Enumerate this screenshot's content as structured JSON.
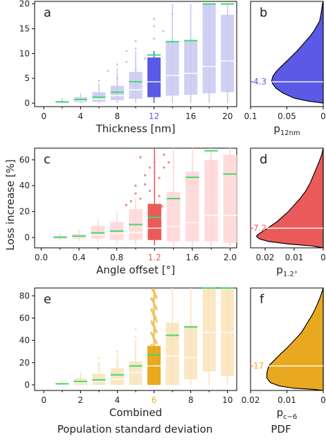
{
  "figure": {
    "y_axis_label": "Loss increase [%]",
    "bottom_left_label": "Population standard deviation",
    "bottom_right_label": "PDF"
  },
  "chart_data": [
    {
      "type": "box",
      "panel_label": "a",
      "xlabel": "Thickness [nm]",
      "xticks": [
        0,
        4,
        8,
        12,
        16,
        20
      ],
      "highlight_tick": 12,
      "xlim": [
        -1,
        21
      ],
      "ylim": [
        -0.7,
        20.5
      ],
      "yticks": [
        0,
        5,
        10,
        15,
        20
      ],
      "base_color": "#c8c8f0",
      "highlight_color": "#5a5ae6",
      "highlight_label_color": "#5a5ae6",
      "boxes": [
        {
          "x": 2,
          "q1": 0.1,
          "median": 0.2,
          "q3": 0.4,
          "mean": 0.25,
          "whisker_low": 0,
          "whisker_high": 1.0
        },
        {
          "x": 4,
          "q1": 0.2,
          "median": 0.5,
          "q3": 1.2,
          "mean": 0.7,
          "whisker_low": 0,
          "whisker_high": 2.0
        },
        {
          "x": 6,
          "q1": 0.3,
          "median": 0.8,
          "q3": 2.2,
          "mean": 1.2,
          "whisker_low": 0,
          "whisker_high": 4.0
        },
        {
          "x": 8,
          "q1": 0.6,
          "median": 1.5,
          "q3": 3.5,
          "mean": 2.2,
          "whisker_low": 0,
          "whisker_high": 7.0
        },
        {
          "x": 10,
          "q1": 0.9,
          "median": 2.7,
          "q3": 6.3,
          "mean": 4.3,
          "whisker_low": 0,
          "whisker_high": 10.5
        },
        {
          "x": 12,
          "q1": 1.2,
          "median": 4.3,
          "q3": 9.2,
          "mean": 9.7,
          "whisker_low": 0,
          "whisker_high": 10.5
        },
        {
          "x": 14,
          "q1": 1.5,
          "median": 5.6,
          "q3": 12.5,
          "mean": 12.4,
          "whisker_low": 0,
          "whisker_high": 20
        },
        {
          "x": 16,
          "q1": 1.7,
          "median": 6.0,
          "q3": 12.6,
          "mean": 12.6,
          "whisker_low": 0,
          "whisker_high": 20
        },
        {
          "x": 18,
          "q1": 2.0,
          "median": 7.4,
          "q3": 20,
          "mean": 20,
          "whisker_low": 0,
          "whisker_high": 20
        },
        {
          "x": 20,
          "q1": 2.2,
          "median": 8.5,
          "q3": 17.8,
          "mean": 20,
          "whisker_low": 0,
          "whisker_high": 20
        }
      ],
      "outliers": [
        [
          8,
          5.0
        ],
        [
          8,
          7.8
        ],
        [
          9,
          8.3
        ],
        [
          10,
          6.8
        ],
        [
          10,
          11.0
        ],
        [
          10,
          12.5
        ],
        [
          11,
          9.0
        ],
        [
          12,
          13.0
        ],
        [
          12,
          15.5
        ],
        [
          12,
          17.0
        ],
        [
          13,
          14.5
        ],
        [
          14,
          18.0
        ],
        [
          7,
          6.5
        ],
        [
          6,
          4.5
        ],
        [
          9,
          10.5
        ]
      ]
    },
    {
      "type": "pdf",
      "panel_label": "b",
      "xlabel_main": "p",
      "xlabel_sub": "12nm",
      "xticks": [
        0.1,
        0.05,
        0
      ],
      "xlim": [
        0.1,
        0
      ],
      "ylim": [
        -0.7,
        20.5
      ],
      "fill_color": "#5a5ae6",
      "mean_value": 4.3,
      "mean_label": "4.3",
      "curve": [
        [
          0,
          0
        ],
        [
          0.004,
          0.1
        ],
        [
          0.02,
          0.4
        ],
        [
          0.04,
          1.0
        ],
        [
          0.055,
          2.0
        ],
        [
          0.065,
          3.0
        ],
        [
          0.07,
          4.0
        ],
        [
          0.071,
          4.5
        ],
        [
          0.069,
          5.5
        ],
        [
          0.064,
          6.5
        ],
        [
          0.057,
          7.5
        ],
        [
          0.05,
          8.5
        ],
        [
          0.043,
          9.5
        ],
        [
          0.036,
          10.5
        ],
        [
          0.03,
          11.5
        ],
        [
          0.024,
          12.5
        ],
        [
          0.018,
          13.5
        ],
        [
          0.013,
          14.5
        ],
        [
          0.009,
          15.5
        ],
        [
          0.005,
          16.5
        ],
        [
          0.003,
          18.0
        ],
        [
          0.001,
          20.0
        ],
        [
          0,
          20.5
        ]
      ]
    },
    {
      "type": "box",
      "panel_label": "c",
      "xlabel": "Angle offset [°]",
      "xticks": [
        0.0,
        0.4,
        0.8,
        1.2,
        1.6,
        2.0
      ],
      "xtick_labels": [
        "0.0",
        "0.4",
        "0.8",
        "1.2",
        "1.6",
        "2.0"
      ],
      "highlight_tick": 1.2,
      "xlim": [
        -0.07,
        2.07
      ],
      "ylim": [
        -8,
        69
      ],
      "yticks": [
        0,
        20,
        40,
        60
      ],
      "base_color": "#ffd6d6",
      "highlight_color": "#eb5a5a",
      "highlight_label_color": "#eb5a5a",
      "boxes": [
        {
          "x": 0.2,
          "q1": -1,
          "median": 0.0,
          "q3": 1.0,
          "mean": 0.2,
          "whisker_low": -2,
          "whisker_high": 3
        },
        {
          "x": 0.4,
          "q1": -1,
          "median": 0.5,
          "q3": 2.5,
          "mean": 1.0,
          "whisker_low": -3,
          "whisker_high": 6
        },
        {
          "x": 0.6,
          "q1": -1,
          "median": 2.0,
          "q3": 9.0,
          "mean": 3.5,
          "whisker_low": -4,
          "whisker_high": 14
        },
        {
          "x": 0.8,
          "q1": -2,
          "median": 3.0,
          "q3": 12.0,
          "mean": 5.0,
          "whisker_low": -5,
          "whisker_high": 20
        },
        {
          "x": 1.0,
          "q1": -2,
          "median": 4.0,
          "q3": 22.0,
          "mean": 10.0,
          "whisker_low": -6,
          "whisker_high": 30
        },
        {
          "x": 1.2,
          "q1": -2,
          "median": 7.2,
          "q3": 26.0,
          "mean": 15.5,
          "whisker_low": -6,
          "whisker_high": 69
        },
        {
          "x": 1.4,
          "q1": -3,
          "median": 8.5,
          "q3": 35.0,
          "mean": 30.0,
          "whisker_low": -7,
          "whisker_high": 69
        },
        {
          "x": 1.6,
          "q1": -3,
          "median": 11.5,
          "q3": 51.0,
          "mean": 46.5,
          "whisker_low": -7,
          "whisker_high": 69
        },
        {
          "x": 1.8,
          "q1": -3,
          "median": 17.0,
          "q3": 60.0,
          "mean": 67.0,
          "whisker_low": -7,
          "whisker_high": 69
        },
        {
          "x": 2.0,
          "q1": -4,
          "median": 17.0,
          "q3": 64.0,
          "mean": 49.0,
          "whisker_low": -8,
          "whisker_high": 69
        }
      ],
      "outliers": [
        [
          1.0,
          34
        ],
        [
          1.0,
          40
        ],
        [
          1.05,
          30
        ],
        [
          1.1,
          41
        ],
        [
          1.1,
          48
        ],
        [
          1.15,
          54
        ],
        [
          1.2,
          50
        ],
        [
          1.2,
          58
        ],
        [
          1.25,
          46
        ],
        [
          1.3,
          54
        ],
        [
          0.95,
          28
        ],
        [
          1.05,
          62
        ],
        [
          1.15,
          36
        ],
        [
          1.25,
          32
        ],
        [
          0.9,
          25
        ],
        [
          1.3,
          64
        ],
        [
          1.35,
          58
        ],
        [
          1.28,
          24
        ]
      ]
    },
    {
      "type": "pdf",
      "panel_label": "d",
      "xlabel_main": "p",
      "xlabel_sub": "1.2°",
      "xticks": [
        0.02,
        0.01,
        0
      ],
      "xlim": [
        0.025,
        0
      ],
      "ylim": [
        -8,
        69
      ],
      "fill_color": "#eb5a5a",
      "mean_value": 7.2,
      "mean_label": "7.2",
      "curve": [
        [
          0,
          -8
        ],
        [
          0.004,
          -6.5
        ],
        [
          0.012,
          -5
        ],
        [
          0.019,
          -3
        ],
        [
          0.022,
          -1
        ],
        [
          0.023,
          1
        ],
        [
          0.022,
          3
        ],
        [
          0.02,
          6
        ],
        [
          0.018,
          9
        ],
        [
          0.016,
          12
        ],
        [
          0.014,
          16
        ],
        [
          0.012,
          20
        ],
        [
          0.01,
          25
        ],
        [
          0.008,
          30
        ],
        [
          0.006,
          36
        ],
        [
          0.0045,
          42
        ],
        [
          0.003,
          50
        ],
        [
          0.0015,
          58
        ],
        [
          0.0005,
          64
        ],
        [
          0,
          69
        ]
      ]
    },
    {
      "type": "box",
      "panel_label": "e",
      "xlabel": "Combined",
      "xticks": [
        0,
        2,
        4,
        6,
        8,
        10
      ],
      "highlight_tick": 6,
      "xlim": [
        -0.5,
        10.5
      ],
      "ylim": [
        -5,
        87
      ],
      "yticks": [
        0,
        20,
        40,
        60,
        80
      ],
      "base_color": "#f9e3b8",
      "highlight_color": "#e8a920",
      "highlight_label_color": "#e8a920",
      "boxes": [
        {
          "x": 1,
          "q1": 0,
          "median": 0.5,
          "q3": 1.5,
          "mean": 1.0,
          "whisker_low": 0,
          "whisker_high": 4
        },
        {
          "x": 2,
          "q1": 0,
          "median": 2.0,
          "q3": 6.0,
          "mean": 3.0,
          "whisker_low": 0,
          "whisker_high": 11
        },
        {
          "x": 3,
          "q1": 0,
          "median": 3.0,
          "q3": 10.0,
          "mean": 4.5,
          "whisker_low": 0,
          "whisker_high": 20
        },
        {
          "x": 4,
          "q1": 0,
          "median": 5.0,
          "q3": 15.0,
          "mean": 9.0,
          "whisker_low": 0,
          "whisker_high": 28
        },
        {
          "x": 5,
          "q1": 0,
          "median": 11.0,
          "q3": 21.0,
          "mean": 17.0,
          "whisker_low": 0,
          "whisker_high": 40
        },
        {
          "x": 6,
          "q1": 0,
          "median": 17.0,
          "q3": 35.0,
          "mean": 27.0,
          "whisker_low": 0,
          "whisker_high": 87
        },
        {
          "x": 7,
          "q1": 0,
          "median": 26.0,
          "q3": 56.0,
          "mean": 44.5,
          "whisker_low": 0,
          "whisker_high": 87
        },
        {
          "x": 8,
          "q1": 5,
          "median": 24.5,
          "q3": 53.0,
          "mean": 52.0,
          "whisker_low": 0,
          "whisker_high": 87
        },
        {
          "x": 9,
          "q1": 12,
          "median": 47.0,
          "q3": 87,
          "mean": 87,
          "whisker_low": 0,
          "whisker_high": 87
        },
        {
          "x": 10,
          "q1": 8,
          "median": 47.0,
          "q3": 87,
          "mean": 87,
          "whisker_low": 0,
          "whisker_high": 87
        }
      ],
      "outliers": [
        [
          3,
          24
        ],
        [
          4,
          30
        ],
        [
          5,
          43
        ],
        [
          5,
          50
        ],
        [
          4,
          22
        ],
        [
          3,
          18
        ]
      ]
    },
    {
      "type": "pdf",
      "panel_label": "f",
      "xlabel_main": "p",
      "xlabel_sub": "c−6",
      "xticks": [
        0.02,
        0.01,
        0
      ],
      "xlim": [
        0.02,
        0
      ],
      "ylim": [
        -5,
        87
      ],
      "fill_color": "#e8a920",
      "mean_value": 17,
      "mean_label": "17",
      "curve": [
        [
          0,
          -5
        ],
        [
          0.003,
          -4
        ],
        [
          0.008,
          -3
        ],
        [
          0.012,
          -1
        ],
        [
          0.0145,
          2
        ],
        [
          0.0155,
          6
        ],
        [
          0.0155,
          11
        ],
        [
          0.015,
          17
        ],
        [
          0.0135,
          22
        ],
        [
          0.012,
          27
        ],
        [
          0.01,
          33
        ],
        [
          0.008,
          40
        ],
        [
          0.006,
          47
        ],
        [
          0.0045,
          55
        ],
        [
          0.003,
          63
        ],
        [
          0.0018,
          71
        ],
        [
          0.0008,
          79
        ],
        [
          0,
          87
        ]
      ]
    }
  ]
}
